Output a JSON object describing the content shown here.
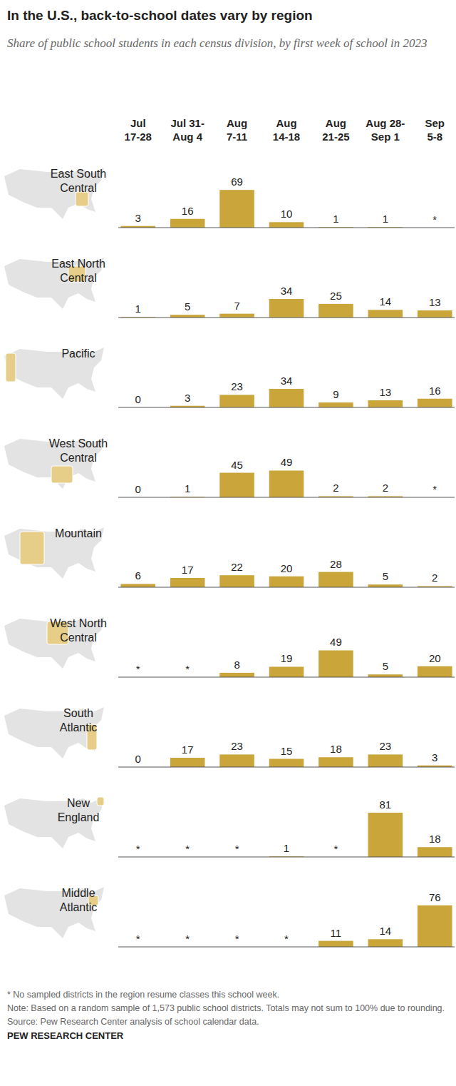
{
  "chart_data": {
    "type": "bar",
    "title": "In the U.S., back-to-school dates vary by region",
    "subtitle": "Share of public school students in each census division, by first week of school in 2023",
    "categories": [
      "Jul\n17-28",
      "Jul 31-\nAug 4",
      "Aug\n7-11",
      "Aug\n14-18",
      "Aug\n21-25",
      "Aug 28-\nSep 1",
      "Sep\n5-8"
    ],
    "series": [
      {
        "name": "East South\nCentral",
        "values": [
          3,
          16,
          69,
          10,
          1,
          1,
          null
        ],
        "value_labels": [
          "3",
          "16",
          "69",
          "10",
          "1",
          "1",
          "*"
        ]
      },
      {
        "name": "East North\nCentral",
        "values": [
          1,
          5,
          7,
          34,
          25,
          14,
          13
        ],
        "value_labels": [
          "1",
          "5",
          "7",
          "34",
          "25",
          "14",
          "13"
        ]
      },
      {
        "name": "Pacific",
        "values": [
          0,
          3,
          23,
          34,
          9,
          13,
          16
        ],
        "value_labels": [
          "0",
          "3",
          "23",
          "34",
          "9",
          "13",
          "16"
        ]
      },
      {
        "name": "West South\nCentral",
        "values": [
          0,
          1,
          45,
          49,
          2,
          2,
          null
        ],
        "value_labels": [
          "0",
          "1",
          "45",
          "49",
          "2",
          "2",
          "*"
        ]
      },
      {
        "name": "Mountain",
        "values": [
          6,
          17,
          22,
          20,
          28,
          5,
          2
        ],
        "value_labels": [
          "6",
          "17",
          "22",
          "20",
          "28",
          "5",
          "2"
        ]
      },
      {
        "name": "West North\nCentral",
        "values": [
          null,
          null,
          8,
          19,
          49,
          5,
          20
        ],
        "value_labels": [
          "*",
          "*",
          "8",
          "19",
          "49",
          "5",
          "20"
        ]
      },
      {
        "name": "South\nAtlantic",
        "values": [
          0,
          17,
          23,
          15,
          18,
          23,
          3
        ],
        "value_labels": [
          "0",
          "17",
          "23",
          "15",
          "18",
          "23",
          "3"
        ]
      },
      {
        "name": "New\nEngland",
        "values": [
          null,
          null,
          null,
          1,
          null,
          81,
          18
        ],
        "value_labels": [
          "*",
          "*",
          "*",
          "1",
          "*",
          "81",
          "18"
        ]
      },
      {
        "name": "Middle\nAtlantic",
        "values": [
          null,
          null,
          null,
          null,
          11,
          14,
          76
        ],
        "value_labels": [
          "*",
          "*",
          "*",
          "*",
          "11",
          "14",
          "76"
        ]
      }
    ],
    "color": "#c9a53a",
    "ylim": [
      0,
      81
    ],
    "data_labels": true,
    "tick_labels": "x",
    "annotations": [
      "* No sampled districts in the region resume classes this school week.",
      "Note: Based on a random sample of 1,573 public school districts. Totals may not sum to 100% due to rounding.",
      "Source: Pew Research Center analysis of school calendar data.",
      "PEW RESEARCH CENTER"
    ]
  }
}
